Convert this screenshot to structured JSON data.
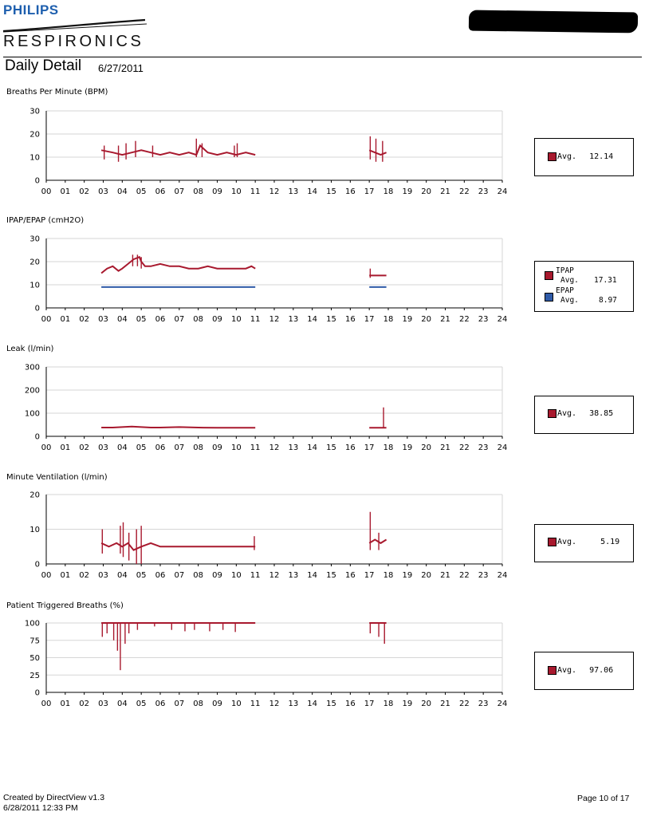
{
  "header": {
    "brand_top": "PHILIPS",
    "brand_bottom": "RESPIRONICS",
    "page_title": "Daily Detail",
    "date": "6/27/2011"
  },
  "footer": {
    "created_by": "Created by DirectView v1.3",
    "created_at": "6/28/2011 12:33 PM",
    "page": "Page 10 of 17"
  },
  "colors": {
    "series_red": "#a8192e",
    "series_blue": "#2f5ba8",
    "brand_blue": "#1e5fae",
    "grid": "#d6d6d6"
  },
  "hour_ticks": [
    "00",
    "01",
    "02",
    "03",
    "04",
    "05",
    "06",
    "07",
    "08",
    "09",
    "10",
    "11",
    "12",
    "13",
    "14",
    "15",
    "16",
    "17",
    "18",
    "19",
    "20",
    "21",
    "22",
    "23",
    "24"
  ],
  "chart_data": [
    {
      "type": "line",
      "title": "Breaths Per Minute (BPM)",
      "xlim": [
        0,
        24
      ],
      "ylim": [
        0,
        30
      ],
      "yticks": [
        "0",
        "10",
        "20",
        "30"
      ],
      "grid": true,
      "series": [
        {
          "color": "#a8192e",
          "segments": [
            {
              "x": [
                2.9,
                3.5,
                4.0,
                4.5,
                5.0,
                5.5,
                6.0,
                6.5,
                7.0,
                7.5,
                7.9,
                8.1,
                8.5,
                9.0,
                9.5,
                10.0,
                10.5,
                11.0
              ],
              "y": [
                13,
                12,
                11,
                12,
                13,
                12,
                11,
                12,
                11,
                12,
                11,
                15,
                12,
                11,
                12,
                11,
                12,
                11
              ]
            },
            {
              "x": [
                17.0,
                17.3,
                17.6,
                17.9
              ],
              "y": [
                13,
                12,
                11,
                12
              ]
            }
          ],
          "spikes": [
            {
              "x": 3.05,
              "lo": 9,
              "hi": 15
            },
            {
              "x": 3.8,
              "lo": 8,
              "hi": 15
            },
            {
              "x": 4.2,
              "lo": 9,
              "hi": 16
            },
            {
              "x": 4.7,
              "lo": 10,
              "hi": 17
            },
            {
              "x": 5.6,
              "lo": 10,
              "hi": 15
            },
            {
              "x": 7.9,
              "lo": 10,
              "hi": 18
            },
            {
              "x": 8.2,
              "lo": 10,
              "hi": 16
            },
            {
              "x": 9.9,
              "lo": 10,
              "hi": 15
            },
            {
              "x": 10.05,
              "lo": 10,
              "hi": 16
            },
            {
              "x": 17.05,
              "lo": 9,
              "hi": 19
            },
            {
              "x": 17.35,
              "lo": 8,
              "hi": 18
            },
            {
              "x": 17.7,
              "lo": 8,
              "hi": 17
            }
          ]
        }
      ],
      "legend": {
        "label": "Avg.",
        "value": "12.14"
      }
    },
    {
      "type": "line",
      "title": "IPAP/EPAP (cmH2O)",
      "xlim": [
        0,
        24
      ],
      "ylim": [
        0,
        30
      ],
      "yticks": [
        "0",
        "10",
        "20",
        "30"
      ],
      "grid": true,
      "series": [
        {
          "name": "IPAP",
          "color": "#a8192e",
          "segments": [
            {
              "x": [
                2.9,
                3.2,
                3.5,
                3.8,
                4.0,
                4.3,
                4.6,
                4.9,
                5.0,
                5.2,
                5.5,
                6.0,
                6.5,
                7.0,
                7.5,
                8.0,
                8.5,
                9.0,
                9.5,
                10.0,
                10.5,
                10.8,
                11.0
              ],
              "y": [
                15,
                17,
                18,
                16,
                17,
                19,
                21,
                22,
                20,
                18,
                18,
                19,
                18,
                18,
                17,
                17,
                18,
                17,
                17,
                17,
                17,
                18,
                17
              ]
            },
            {
              "x": [
                17.0,
                17.3,
                17.6,
                17.9
              ],
              "y": [
                14,
                14,
                14,
                14
              ]
            }
          ],
          "spikes": [
            {
              "x": 4.55,
              "lo": 18,
              "hi": 23
            },
            {
              "x": 4.8,
              "lo": 18,
              "hi": 23
            },
            {
              "x": 5.0,
              "lo": 17,
              "hi": 22
            },
            {
              "x": 17.05,
              "lo": 13,
              "hi": 17
            }
          ]
        },
        {
          "name": "EPAP",
          "color": "#2f5ba8",
          "segments": [
            {
              "x": [
                2.9,
                11.0
              ],
              "y": [
                9,
                9
              ]
            },
            {
              "x": [
                17.0,
                17.9
              ],
              "y": [
                9,
                9
              ]
            }
          ],
          "spikes": []
        }
      ],
      "legend": [
        {
          "label": "IPAP",
          "sub": "Avg.",
          "value": "17.31"
        },
        {
          "label": "EPAP",
          "sub": "Avg.",
          "value": "8.97"
        }
      ]
    },
    {
      "type": "line",
      "title": "Leak (l/min)",
      "xlim": [
        0,
        24
      ],
      "ylim": [
        0,
        300
      ],
      "yticks": [
        "0",
        "100",
        "200",
        "300"
      ],
      "grid": true,
      "series": [
        {
          "color": "#a8192e",
          "segments": [
            {
              "x": [
                2.9,
                3.5,
                4.0,
                4.5,
                5.0,
                5.5,
                6.0,
                7.0,
                8.0,
                9.0,
                10.0,
                11.0
              ],
              "y": [
                38,
                38,
                40,
                42,
                40,
                38,
                38,
                40,
                38,
                37,
                37,
                37
              ]
            },
            {
              "x": [
                17.0,
                17.5,
                17.9
              ],
              "y": [
                37,
                37,
                37
              ]
            }
          ],
          "spikes": [
            {
              "x": 17.75,
              "lo": 37,
              "hi": 125
            }
          ]
        }
      ],
      "legend": {
        "label": "Avg.",
        "value": "38.85"
      }
    },
    {
      "type": "line",
      "title": "Minute Ventilation (l/min)",
      "xlim": [
        0,
        24
      ],
      "ylim": [
        0,
        20
      ],
      "yticks": [
        "0",
        "10",
        "20"
      ],
      "grid": true,
      "series": [
        {
          "color": "#a8192e",
          "segments": [
            {
              "x": [
                2.9,
                3.3,
                3.7,
                4.0,
                4.3,
                4.6,
                5.0,
                5.5,
                6.0,
                7.0,
                8.0,
                9.0,
                10.0,
                11.0
              ],
              "y": [
                6,
                5,
                6,
                5,
                6,
                4,
                5,
                6,
                5,
                5,
                5,
                5,
                5,
                5
              ]
            },
            {
              "x": [
                17.0,
                17.3,
                17.6,
                17.9
              ],
              "y": [
                6,
                7,
                6,
                7
              ]
            }
          ],
          "spikes": [
            {
              "x": 2.95,
              "lo": 3,
              "hi": 10
            },
            {
              "x": 3.9,
              "lo": 3,
              "hi": 11
            },
            {
              "x": 4.05,
              "lo": 2,
              "hi": 12
            },
            {
              "x": 4.35,
              "lo": 1,
              "hi": 9
            },
            {
              "x": 4.75,
              "lo": 0,
              "hi": 10
            },
            {
              "x": 5.0,
              "lo": 0,
              "hi": 11
            },
            {
              "x": 10.95,
              "lo": 4,
              "hi": 8
            },
            {
              "x": 17.05,
              "lo": 4,
              "hi": 15
            },
            {
              "x": 17.5,
              "lo": 4,
              "hi": 9
            }
          ]
        }
      ],
      "legend": {
        "label": "Avg.",
        "value": "5.19"
      }
    },
    {
      "type": "line",
      "title": "Patient Triggered Breaths (%)",
      "xlim": [
        0,
        24
      ],
      "ylim": [
        0,
        100
      ],
      "yticks": [
        "0",
        "25",
        "50",
        "75",
        "100"
      ],
      "grid": true,
      "series": [
        {
          "color": "#a8192e",
          "segments": [
            {
              "x": [
                2.9,
                11.0
              ],
              "y": [
                100,
                100
              ]
            },
            {
              "x": [
                17.0,
                17.9
              ],
              "y": [
                100,
                100
              ]
            }
          ],
          "spikes": [
            {
              "x": 2.95,
              "lo": 80,
              "hi": 100
            },
            {
              "x": 3.2,
              "lo": 85,
              "hi": 100
            },
            {
              "x": 3.55,
              "lo": 75,
              "hi": 100
            },
            {
              "x": 3.75,
              "lo": 60,
              "hi": 100
            },
            {
              "x": 3.9,
              "lo": 32,
              "hi": 100
            },
            {
              "x": 4.15,
              "lo": 70,
              "hi": 100
            },
            {
              "x": 4.35,
              "lo": 85,
              "hi": 100
            },
            {
              "x": 4.8,
              "lo": 90,
              "hi": 100
            },
            {
              "x": 5.7,
              "lo": 95,
              "hi": 100
            },
            {
              "x": 6.6,
              "lo": 90,
              "hi": 100
            },
            {
              "x": 7.3,
              "lo": 88,
              "hi": 100
            },
            {
              "x": 7.8,
              "lo": 90,
              "hi": 100
            },
            {
              "x": 8.6,
              "lo": 88,
              "hi": 100
            },
            {
              "x": 9.3,
              "lo": 90,
              "hi": 100
            },
            {
              "x": 9.95,
              "lo": 87,
              "hi": 100
            },
            {
              "x": 17.05,
              "lo": 85,
              "hi": 100
            },
            {
              "x": 17.5,
              "lo": 80,
              "hi": 100
            },
            {
              "x": 17.8,
              "lo": 70,
              "hi": 100
            }
          ]
        }
      ],
      "legend": {
        "label": "Avg.",
        "value": "97.06"
      }
    }
  ]
}
